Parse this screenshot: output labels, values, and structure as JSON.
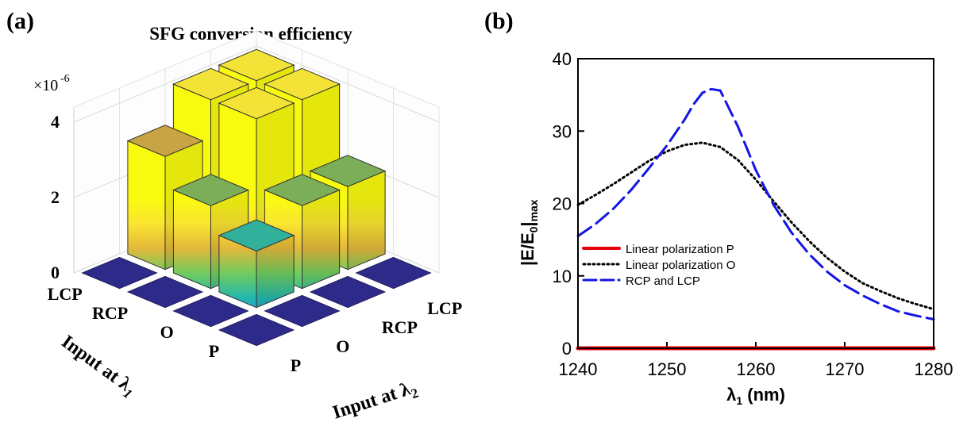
{
  "panels": {
    "a": {
      "label": "(a)"
    },
    "b": {
      "label": "(b)"
    }
  },
  "chart_data": [
    {
      "type": "bar3d",
      "title": "SFG conversion efficiency",
      "z_multiplier": "×10",
      "z_exponent": "-6",
      "zticks": [
        "0",
        "2",
        "4"
      ],
      "zlim": [
        0,
        4
      ],
      "x_axis": {
        "label": "Input at λ",
        "subscript": "1",
        "categories": [
          "P",
          "O",
          "RCP",
          "LCP"
        ]
      },
      "y_axis": {
        "label": "Input at λ",
        "subscript": "2",
        "categories": [
          "P",
          "O",
          "RCP",
          "LCP"
        ]
      },
      "colormap": [
        "#3e26a8",
        "#2a8ae6",
        "#21b6b1",
        "#6fcc5f",
        "#e2b83a",
        "#fbe531",
        "#f9fb0e"
      ],
      "values": [
        {
          "x": "P",
          "y": "P",
          "z": 0
        },
        {
          "x": "P",
          "y": "O",
          "z": 0
        },
        {
          "x": "P",
          "y": "RCP",
          "z": 0
        },
        {
          "x": "P",
          "y": "LCP",
          "z": 0
        },
        {
          "x": "O",
          "y": "P",
          "z": 0
        },
        {
          "x": "O",
          "y": "O",
          "z": 1.5
        },
        {
          "x": "O",
          "y": "RCP",
          "z": 2.2
        },
        {
          "x": "O",
          "y": "LCP",
          "z": 2.2
        },
        {
          "x": "RCP",
          "y": "P",
          "z": 0
        },
        {
          "x": "RCP",
          "y": "O",
          "z": 2.2
        },
        {
          "x": "RCP",
          "y": "RCP",
          "z": 4.0
        },
        {
          "x": "RCP",
          "y": "LCP",
          "z": 4.0
        },
        {
          "x": "LCP",
          "y": "P",
          "z": 0
        },
        {
          "x": "LCP",
          "y": "O",
          "z": 3.0
        },
        {
          "x": "LCP",
          "y": "RCP",
          "z": 4.0
        },
        {
          "x": "LCP",
          "y": "LCP",
          "z": 4.0
        }
      ]
    },
    {
      "type": "line",
      "ylabel": "|E/E",
      "ylabel_sub0": "0",
      "ylabel_close": "|",
      "ylabel_sub1": "max",
      "xlabel": "λ",
      "xlabel_sub": "1",
      "xlabel_unit": " (nm)",
      "xlim": [
        1240,
        1280
      ],
      "ylim": [
        0,
        40
      ],
      "xticks": [
        1240,
        1250,
        1260,
        1270,
        1280
      ],
      "yticks": [
        0,
        10,
        20,
        30,
        40
      ],
      "legend_position": "lower-left",
      "series": [
        {
          "name": "Linear polarization P",
          "color": "#e8000b",
          "style": "solid",
          "x": [
            1240,
            1250,
            1260,
            1270,
            1280
          ],
          "y": [
            0,
            0,
            0,
            0,
            0
          ]
        },
        {
          "name": "Linear polarization O",
          "color": "#000000",
          "style": "dotted",
          "x": [
            1240,
            1242,
            1244,
            1246,
            1248,
            1250,
            1252,
            1254,
            1256,
            1258,
            1260,
            1262,
            1264,
            1266,
            1268,
            1270,
            1272,
            1274,
            1276,
            1278,
            1280
          ],
          "y": [
            19.8,
            21.2,
            22.7,
            24.3,
            25.9,
            27.2,
            28.1,
            28.4,
            27.8,
            26.0,
            23.3,
            20.3,
            17.4,
            14.8,
            12.5,
            10.6,
            9.0,
            7.9,
            6.9,
            6.1,
            5.4
          ]
        },
        {
          "name": "RCP and LCP",
          "color": "#1414e6",
          "style": "dashed",
          "x": [
            1240,
            1242,
            1244,
            1246,
            1248,
            1250,
            1252,
            1253,
            1254,
            1255,
            1256,
            1258,
            1260,
            1262,
            1264,
            1266,
            1268,
            1270,
            1272,
            1274,
            1276,
            1278,
            1280
          ],
          "y": [
            15.5,
            17.2,
            19.3,
            21.9,
            24.9,
            28.0,
            31.6,
            33.7,
            35.3,
            35.8,
            35.6,
            30.6,
            24.6,
            19.8,
            16.0,
            13.0,
            10.6,
            8.7,
            7.3,
            6.1,
            5.1,
            4.5,
            4.0
          ]
        }
      ]
    }
  ]
}
